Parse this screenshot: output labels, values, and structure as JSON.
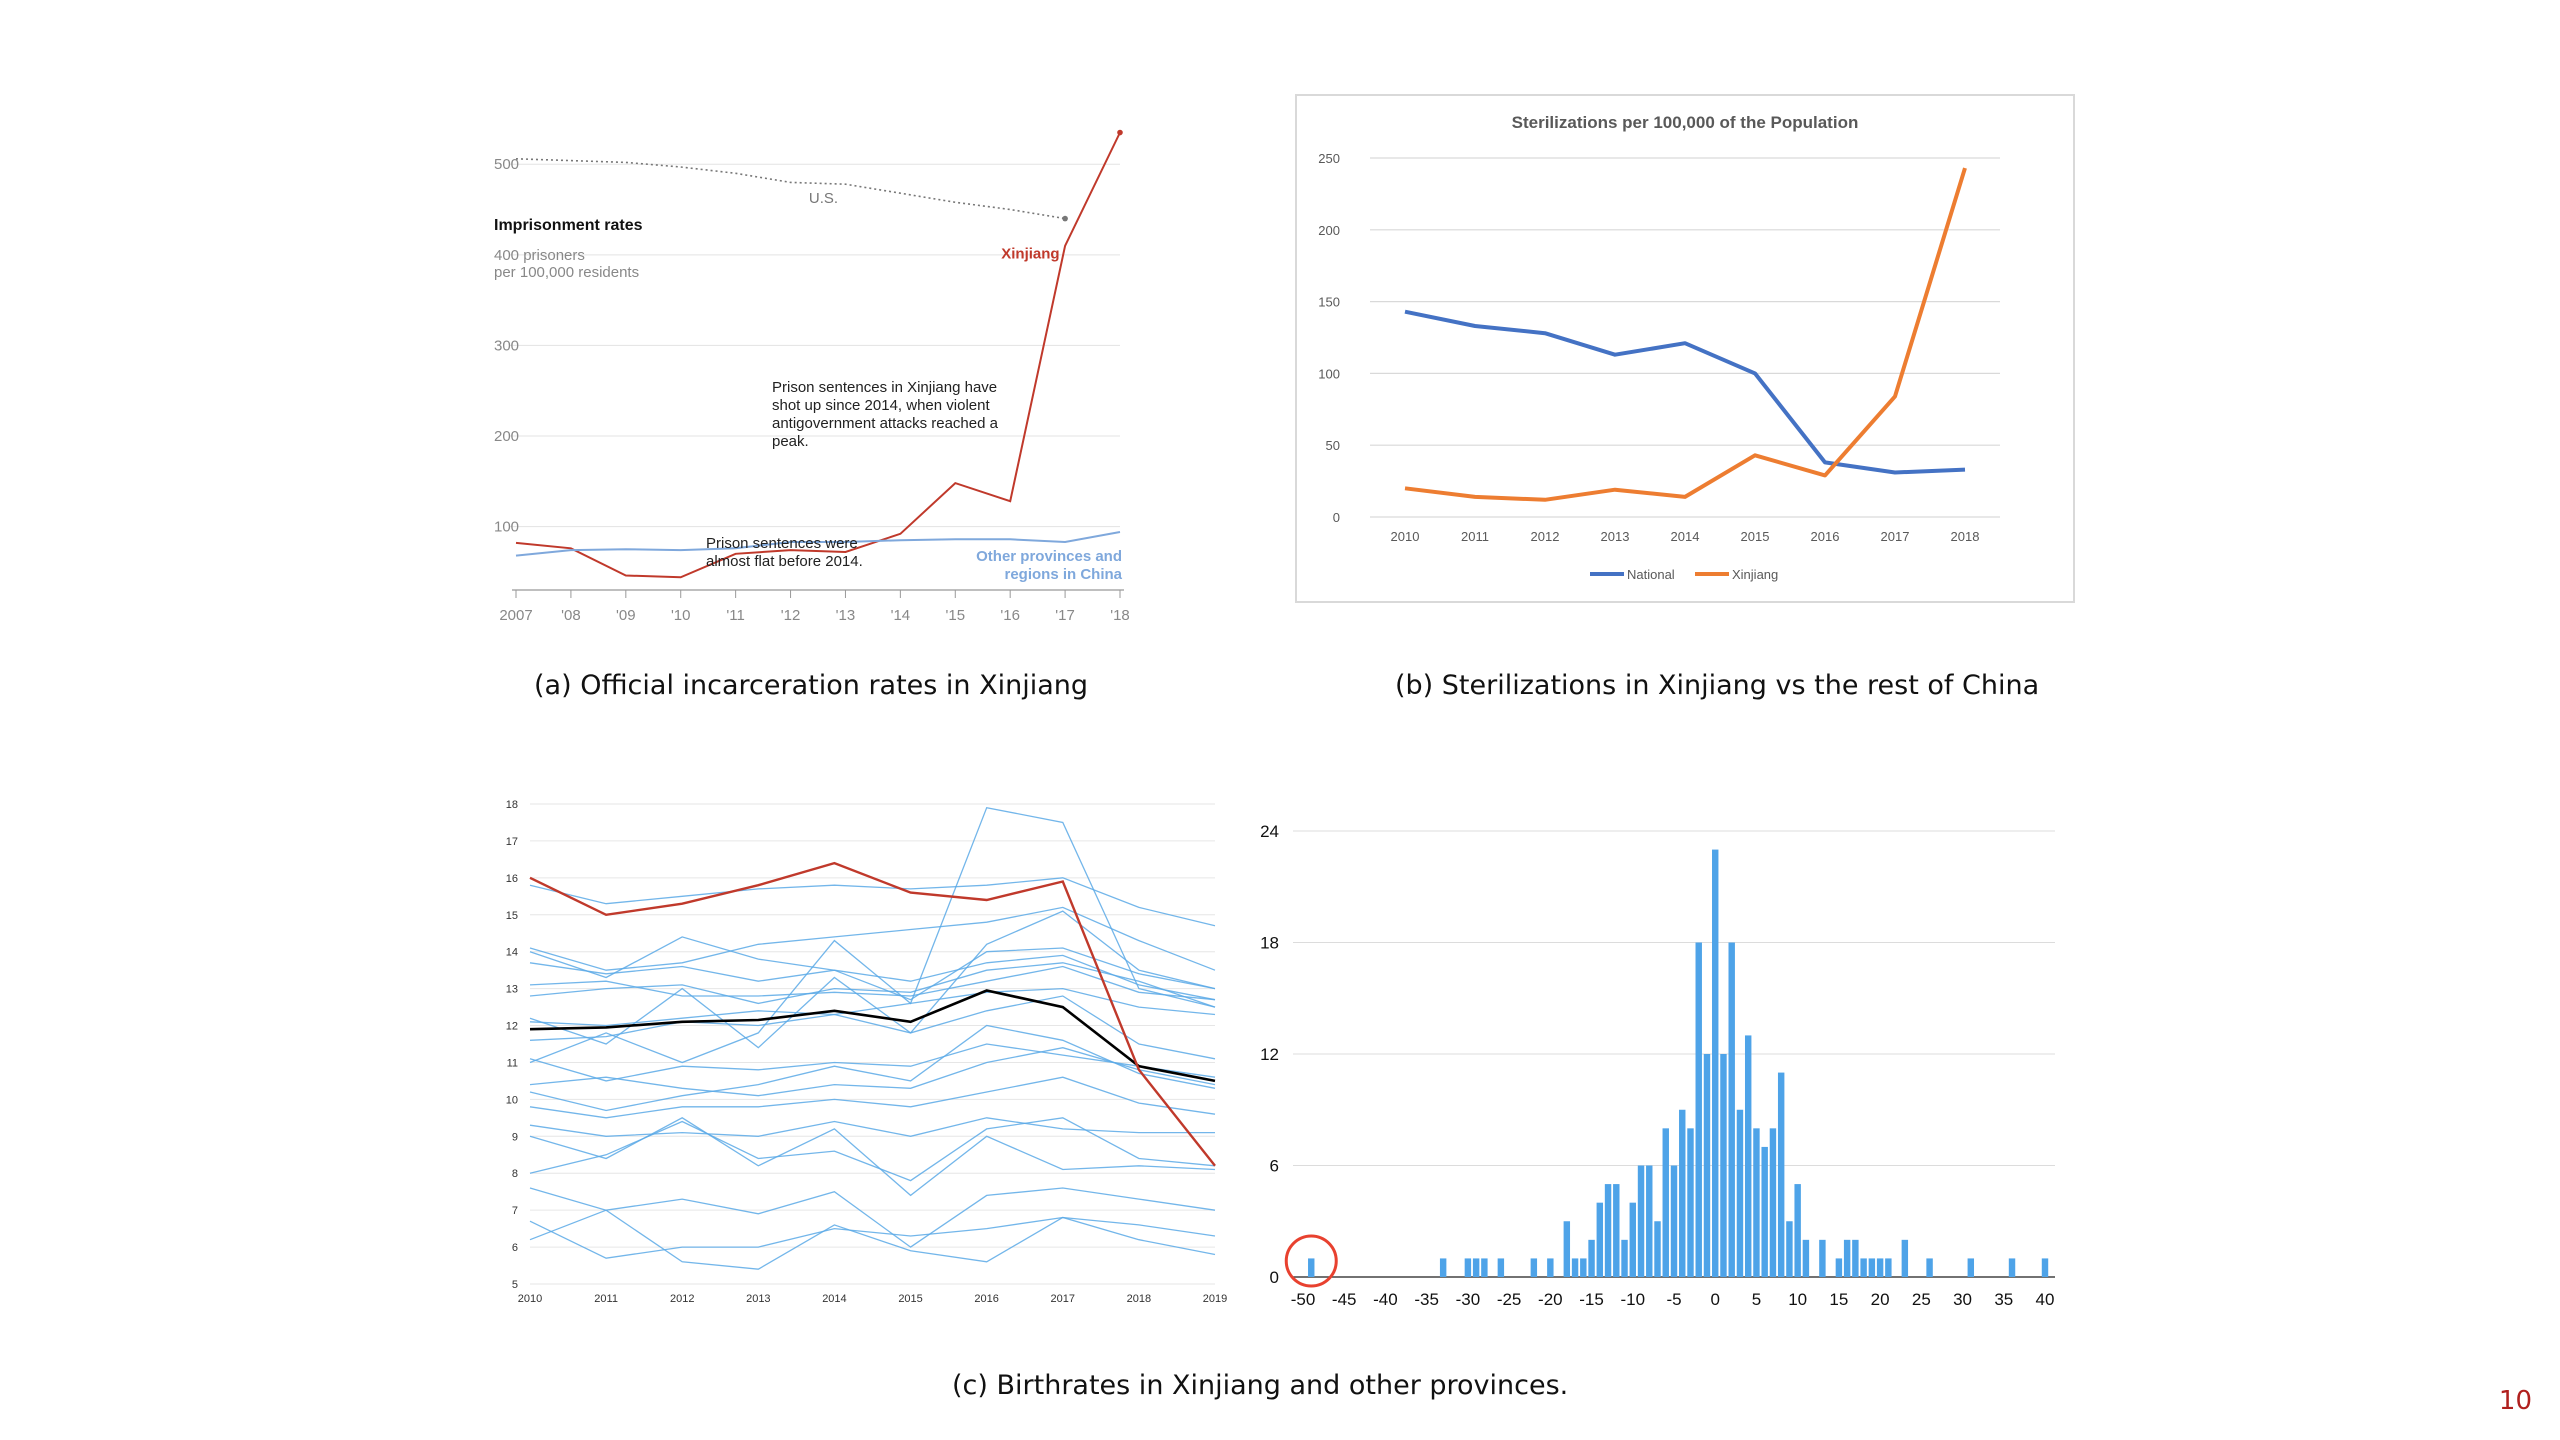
{
  "captions": {
    "a": "(a) Official incarceration rates in Xinjiang",
    "b": "(b) Sterilizations in Xinjiang vs the rest of China",
    "c": "(c) Birthrates in Xinjiang and other provinces."
  },
  "page_number": "10",
  "colors": {
    "xinjiang_red": "#c0392b",
    "other_blue": "#7fa8dc",
    "us_gray": "#777777",
    "national_blue": "#4472c4",
    "xinjiang_orange": "#ed7d31",
    "line_blue": "#5aa9e6",
    "bar_blue": "#4ea3e8",
    "highlight_circle": "#e8412f"
  },
  "chart_data": [
    {
      "id": "incarceration",
      "type": "line",
      "y_ticks": [
        "500",
        "400 prisoners",
        "300",
        "200",
        "100"
      ],
      "y_tick_values": [
        500,
        400,
        300,
        200,
        100
      ],
      "x_labels": [
        "2007",
        "'08",
        "'09",
        "'10",
        "'11",
        "'12",
        "'13",
        "'14",
        "'15",
        "'16",
        "'17",
        "'18"
      ],
      "x": [
        2007,
        2008,
        2009,
        2010,
        2011,
        2012,
        2013,
        2014,
        2015,
        2016,
        2017,
        2018
      ],
      "ylim": [
        30,
        540
      ],
      "title": "Imprisonment rates",
      "subtitle": "per 100,000 residents",
      "series": [
        {
          "name": "U.S.",
          "style": "dotted",
          "x": [
            2007,
            2008,
            2009,
            2010,
            2011,
            2012,
            2013,
            2014,
            2015,
            2016,
            2017
          ],
          "values": [
            506,
            504,
            502,
            497,
            490,
            480,
            478,
            468,
            458,
            450,
            440
          ]
        },
        {
          "name": "Xinjiang",
          "x": [
            2007,
            2008,
            2009,
            2010,
            2011,
            2012,
            2013,
            2014,
            2015,
            2016,
            2017,
            2018
          ],
          "values": [
            82,
            76,
            46,
            44,
            70,
            74,
            72,
            92,
            148,
            128,
            410,
            535
          ]
        },
        {
          "name": "Other provinces and regions in China",
          "x": [
            2007,
            2008,
            2009,
            2010,
            2011,
            2012,
            2013,
            2014,
            2015,
            2016,
            2017,
            2018
          ],
          "values": [
            68,
            74,
            75,
            74,
            76,
            83,
            83,
            85,
            86,
            86,
            83,
            94
          ]
        }
      ],
      "annotations": [
        "Prison sentences in Xinjiang have shot up since 2014, when violent antigovernment attacks reached a peak.",
        "Prison sentences were almost flat before 2014."
      ]
    },
    {
      "id": "sterilizations",
      "type": "line",
      "title": "Sterilizations per 100,000 of the Population",
      "categories": [
        "2010",
        "2011",
        "2012",
        "2013",
        "2014",
        "2015",
        "2016",
        "2017",
        "2018"
      ],
      "y_ticks": [
        "0",
        "50",
        "100",
        "150",
        "200",
        "250"
      ],
      "ylim": [
        0,
        250
      ],
      "grid": true,
      "legend": "bottom",
      "series": [
        {
          "name": "National",
          "values": [
            143,
            133,
            128,
            113,
            121,
            100,
            38,
            31,
            33
          ]
        },
        {
          "name": "Xinjiang",
          "values": [
            20,
            14,
            12,
            19,
            14,
            43,
            29,
            84,
            243
          ]
        }
      ]
    },
    {
      "id": "birthrates",
      "type": "line",
      "categories": [
        "2010",
        "2011",
        "2012",
        "2013",
        "2014",
        "2015",
        "2016",
        "2017",
        "2018",
        "2019"
      ],
      "y_ticks": [
        "5",
        "6",
        "7",
        "8",
        "9",
        "10",
        "11",
        "12",
        "13",
        "14",
        "15",
        "16",
        "17",
        "18"
      ],
      "ylim": [
        5,
        18
      ],
      "grid": true,
      "highlight_series": [
        {
          "role": "xinjiang",
          "values": [
            16.0,
            15.0,
            15.3,
            15.8,
            16.4,
            15.6,
            15.4,
            15.9,
            10.8,
            8.2
          ]
        },
        {
          "role": "average",
          "values": [
            11.9,
            11.95,
            12.1,
            12.15,
            12.4,
            12.1,
            12.95,
            12.5,
            10.9,
            10.5
          ]
        }
      ],
      "series": [
        [
          15.8,
          15.3,
          15.5,
          15.7,
          15.8,
          15.7,
          15.8,
          16.0,
          15.2,
          14.7
        ],
        [
          14.1,
          13.5,
          13.7,
          14.2,
          14.4,
          14.6,
          14.8,
          15.2,
          14.3,
          13.5
        ],
        [
          13.7,
          13.4,
          13.6,
          13.2,
          13.5,
          13.2,
          13.7,
          13.9,
          13.1,
          12.7
        ],
        [
          13.1,
          13.2,
          12.8,
          12.8,
          12.9,
          12.8,
          13.2,
          13.6,
          12.9,
          12.7
        ],
        [
          12.8,
          13.0,
          13.1,
          12.6,
          13.0,
          12.9,
          13.5,
          13.7,
          13.2,
          12.5
        ],
        [
          12.1,
          12.0,
          12.2,
          12.4,
          12.3,
          12.6,
          12.9,
          13.0,
          12.5,
          12.3
        ],
        [
          11.6,
          11.7,
          12.1,
          12.0,
          12.3,
          11.8,
          12.4,
          12.8,
          11.5,
          11.1
        ],
        [
          11.1,
          10.5,
          10.9,
          10.8,
          11.0,
          10.9,
          11.5,
          11.2,
          10.9,
          10.6
        ],
        [
          10.4,
          10.6,
          10.3,
          10.1,
          10.4,
          10.3,
          11.0,
          11.4,
          10.8,
          10.4
        ],
        [
          9.8,
          9.5,
          9.8,
          9.8,
          10.0,
          9.8,
          10.2,
          10.6,
          9.9,
          9.6
        ],
        [
          9.3,
          9.0,
          9.1,
          9.0,
          9.4,
          9.0,
          9.5,
          9.2,
          9.1,
          9.1
        ],
        [
          8.0,
          8.5,
          9.4,
          8.4,
          8.6,
          7.8,
          9.2,
          9.5,
          8.4,
          8.2
        ],
        [
          7.6,
          7.0,
          7.3,
          6.9,
          7.5,
          6.0,
          7.4,
          7.6,
          7.3,
          7.0
        ],
        [
          6.7,
          5.7,
          6.0,
          6.0,
          6.5,
          6.3,
          6.5,
          6.8,
          6.6,
          6.3
        ],
        [
          6.2,
          7.0,
          5.6,
          5.4,
          6.6,
          5.9,
          5.6,
          6.8,
          6.2,
          5.8
        ],
        [
          11.0,
          11.8,
          11.0,
          11.8,
          14.3,
          12.6,
          17.9,
          17.5,
          13.0,
          12.5
        ],
        [
          12.2,
          11.5,
          13.0,
          11.4,
          13.3,
          11.8,
          14.2,
          15.1,
          13.5,
          13.0
        ],
        [
          9.0,
          8.4,
          9.5,
          8.2,
          9.2,
          7.4,
          9.0,
          8.1,
          8.2,
          8.1
        ],
        [
          14.0,
          13.3,
          14.4,
          13.8,
          13.5,
          12.7,
          14.0,
          14.1,
          13.4,
          13.0
        ],
        [
          10.2,
          9.7,
          10.1,
          10.4,
          10.9,
          10.5,
          12.0,
          11.6,
          10.7,
          10.3
        ]
      ]
    },
    {
      "id": "birthrate_change_histogram",
      "type": "bar",
      "x_ticks": [
        "-50",
        "-45",
        "-40",
        "-35",
        "-30",
        "-25",
        "-20",
        "-15",
        "-10",
        "-5",
        "0",
        "5",
        "10",
        "15",
        "20",
        "25",
        "30",
        "35",
        "40"
      ],
      "y_ticks": [
        "0",
        "6",
        "12",
        "18",
        "24"
      ],
      "ylim": [
        0,
        24
      ],
      "xlim": [
        -50,
        40
      ],
      "grid": true,
      "bins": [
        {
          "x": -49,
          "count": 1
        },
        {
          "x": -33,
          "count": 1
        },
        {
          "x": -30,
          "count": 1
        },
        {
          "x": -29,
          "count": 1
        },
        {
          "x": -28,
          "count": 1
        },
        {
          "x": -26,
          "count": 1
        },
        {
          "x": -22,
          "count": 1
        },
        {
          "x": -20,
          "count": 1
        },
        {
          "x": -18,
          "count": 3
        },
        {
          "x": -17,
          "count": 1
        },
        {
          "x": -16,
          "count": 1
        },
        {
          "x": -15,
          "count": 2
        },
        {
          "x": -14,
          "count": 4
        },
        {
          "x": -13,
          "count": 5
        },
        {
          "x": -12,
          "count": 5
        },
        {
          "x": -11,
          "count": 2
        },
        {
          "x": -10,
          "count": 4
        },
        {
          "x": -9,
          "count": 6
        },
        {
          "x": -8,
          "count": 6
        },
        {
          "x": -7,
          "count": 3
        },
        {
          "x": -6,
          "count": 8
        },
        {
          "x": -5,
          "count": 6
        },
        {
          "x": -4,
          "count": 9
        },
        {
          "x": -3,
          "count": 8
        },
        {
          "x": -2,
          "count": 18
        },
        {
          "x": -1,
          "count": 12
        },
        {
          "x": 0,
          "count": 23
        },
        {
          "x": 1,
          "count": 12
        },
        {
          "x": 2,
          "count": 18
        },
        {
          "x": 3,
          "count": 9
        },
        {
          "x": 4,
          "count": 13
        },
        {
          "x": 5,
          "count": 8
        },
        {
          "x": 6,
          "count": 7
        },
        {
          "x": 7,
          "count": 8
        },
        {
          "x": 8,
          "count": 11
        },
        {
          "x": 9,
          "count": 3
        },
        {
          "x": 10,
          "count": 5
        },
        {
          "x": 11,
          "count": 2
        },
        {
          "x": 13,
          "count": 2
        },
        {
          "x": 15,
          "count": 1
        },
        {
          "x": 16,
          "count": 2
        },
        {
          "x": 17,
          "count": 2
        },
        {
          "x": 18,
          "count": 1
        },
        {
          "x": 19,
          "count": 1
        },
        {
          "x": 20,
          "count": 1
        },
        {
          "x": 21,
          "count": 1
        },
        {
          "x": 23,
          "count": 2
        },
        {
          "x": 26,
          "count": 1
        },
        {
          "x": 31,
          "count": 1
        },
        {
          "x": 36,
          "count": 1
        },
        {
          "x": 40,
          "count": 1
        }
      ],
      "highlight_bin": -49
    }
  ]
}
